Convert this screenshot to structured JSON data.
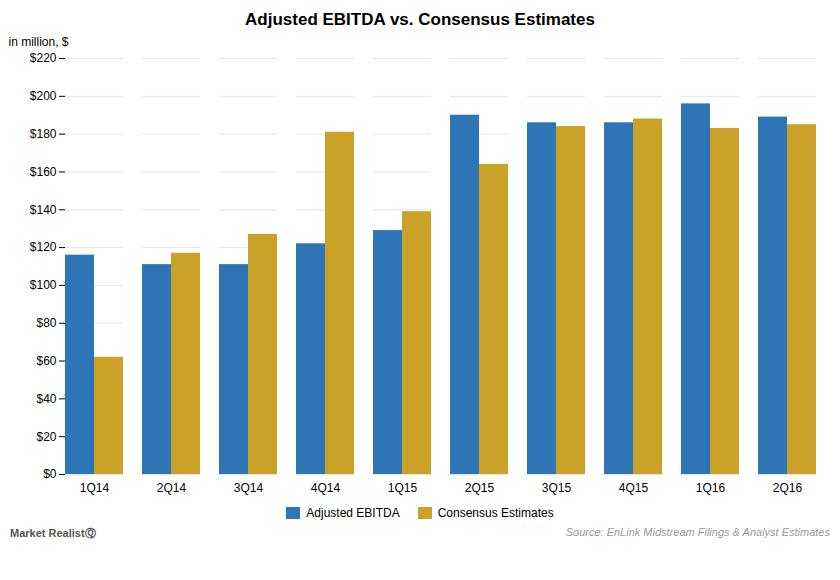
{
  "chart_data": {
    "type": "bar",
    "title": "Adjusted EBITDA vs. Consensus Estimates",
    "categories": [
      "1Q14",
      "2Q14",
      "3Q14",
      "4Q14",
      "1Q15",
      "2Q15",
      "3Q15",
      "4Q15",
      "1Q16",
      "2Q16"
    ],
    "series": [
      {
        "name": "Adjusted EBITDA",
        "color": "#2E75B6",
        "values": [
          116,
          111,
          111,
          122,
          129,
          190,
          186,
          186,
          196,
          189
        ]
      },
      {
        "name": "Consensus Estimates",
        "color": "#C9A227",
        "values": [
          62,
          117,
          127,
          181,
          139,
          164,
          184,
          188,
          183,
          185
        ]
      }
    ],
    "ylabel": "in million, $",
    "ylim": [
      0,
      220
    ],
    "yticks": [
      {
        "value": 0,
        "label": "$0"
      },
      {
        "value": 20,
        "label": "$20"
      },
      {
        "value": 40,
        "label": "$40"
      },
      {
        "value": 60,
        "label": "$60"
      },
      {
        "value": 80,
        "label": "$80"
      },
      {
        "value": 100,
        "label": "$100"
      },
      {
        "value": 120,
        "label": "$120"
      },
      {
        "value": 140,
        "label": "$140"
      },
      {
        "value": 160,
        "label": "$160"
      },
      {
        "value": 180,
        "label": "$180"
      },
      {
        "value": 200,
        "label": "$200"
      },
      {
        "value": 220,
        "label": "$220"
      }
    ],
    "grid": true,
    "legend": "lower center",
    "annotations": [
      "Source: EnLink Midstream Filings & Analyst Estimates",
      "Market RealistⓆ"
    ]
  }
}
